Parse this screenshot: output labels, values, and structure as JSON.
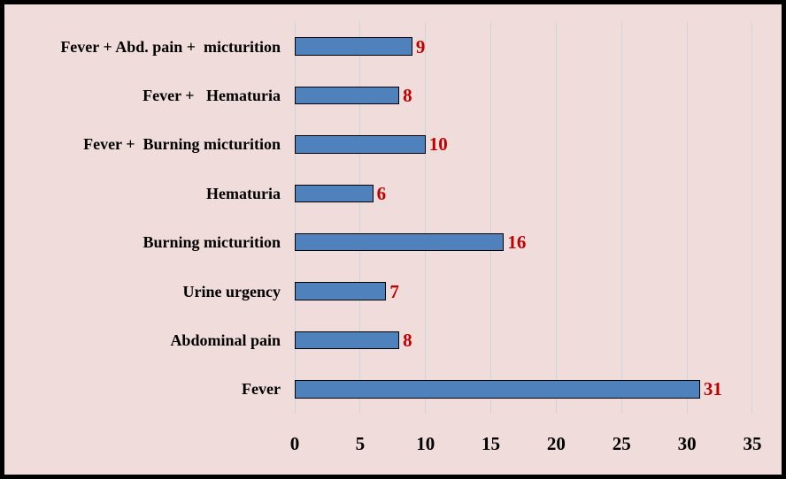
{
  "chart_data": {
    "type": "bar",
    "orientation": "horizontal",
    "categories": [
      "Fever + Abd. pain +  micturition",
      "Fever +   Hematuria",
      "Fever +  Burning micturition",
      "Hematuria",
      "Burning micturition",
      "Urine urgency",
      "Abdominal pain",
      "Fever"
    ],
    "values": [
      9,
      8,
      10,
      6,
      16,
      7,
      8,
      31
    ],
    "title": "",
    "xlabel": "",
    "ylabel": "",
    "xlim": [
      0,
      35
    ],
    "x_ticks": [
      0,
      5,
      10,
      15,
      20,
      25,
      30,
      35
    ],
    "grid": true,
    "legend": false,
    "colors": {
      "bar_fill": "#4F81BD",
      "bar_border": "#000000",
      "value_label": "#C00000",
      "background": "#F0DCDB",
      "gridline": "#CBD5DA",
      "outer_frame": "#000000",
      "axis_text": "#000000"
    }
  }
}
